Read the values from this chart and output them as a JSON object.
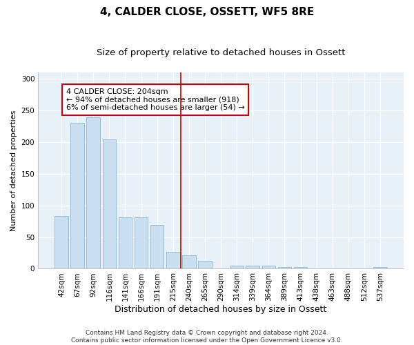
{
  "title": "4, CALDER CLOSE, OSSETT, WF5 8RE",
  "subtitle": "Size of property relative to detached houses in Ossett",
  "xlabel": "Distribution of detached houses by size in Ossett",
  "ylabel": "Number of detached properties",
  "bar_labels": [
    "42sqm",
    "67sqm",
    "92sqm",
    "116sqm",
    "141sqm",
    "166sqm",
    "191sqm",
    "215sqm",
    "240sqm",
    "265sqm",
    "290sqm",
    "314sqm",
    "339sqm",
    "364sqm",
    "389sqm",
    "413sqm",
    "438sqm",
    "463sqm",
    "488sqm",
    "512sqm",
    "537sqm"
  ],
  "bar_values": [
    83,
    230,
    239,
    204,
    81,
    81,
    69,
    27,
    21,
    13,
    0,
    5,
    5,
    5,
    3,
    3,
    0,
    0,
    0,
    0,
    3
  ],
  "bar_color": "#c9dff0",
  "bar_edge_color": "#89b8d8",
  "vline_x": 7.5,
  "vline_color": "#cc0000",
  "annotation_text": "4 CALDER CLOSE: 204sqm\n← 94% of detached houses are smaller (918)\n6% of semi-detached houses are larger (54) →",
  "annotation_box_color": "#cc0000",
  "ylim": [
    0,
    310
  ],
  "yticks": [
    0,
    50,
    100,
    150,
    200,
    250,
    300
  ],
  "footer_text": "Contains HM Land Registry data © Crown copyright and database right 2024.\nContains public sector information licensed under the Open Government Licence v3.0.",
  "background_color": "#e8f0f8",
  "grid_color": "#ffffff",
  "title_fontsize": 11,
  "subtitle_fontsize": 9.5,
  "xlabel_fontsize": 9,
  "ylabel_fontsize": 8,
  "tick_fontsize": 7.5,
  "annotation_fontsize": 8,
  "footer_fontsize": 6.5
}
